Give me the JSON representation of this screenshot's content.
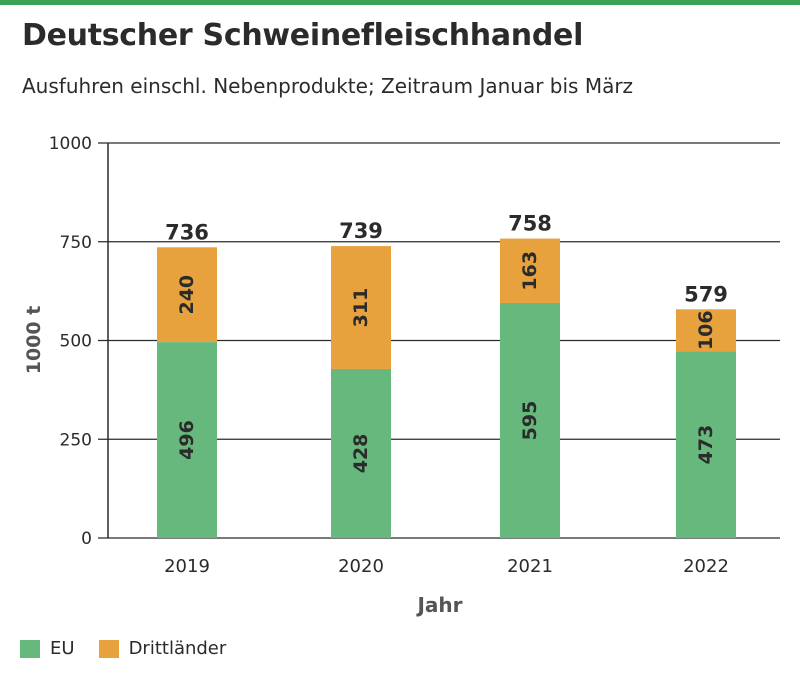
{
  "header": {
    "title": "Deutscher Schweinefleischhandel",
    "subtitle": "Ausfuhren einschl. Nebenprodukte; Zeitraum Januar bis März"
  },
  "colors": {
    "accent_bar": "#3aa35a",
    "eu": "#67b87d",
    "drittlaender": "#e8a23d",
    "text": "#2b2b2b"
  },
  "chart_data": {
    "type": "bar",
    "stacked": true,
    "title": "Deutscher Schweinefleischhandel",
    "subtitle": "Ausfuhren einschl. Nebenprodukte; Zeitraum Januar bis März",
    "xlabel": "Jahr",
    "ylabel": "1000 t",
    "categories": [
      "2019",
      "2020",
      "2021",
      "2022"
    ],
    "series": [
      {
        "name": "EU",
        "values": [
          496,
          428,
          595,
          473
        ]
      },
      {
        "name": "Drittländer",
        "values": [
          240,
          311,
          163,
          106
        ]
      }
    ],
    "totals": [
      736,
      739,
      758,
      579
    ],
    "ylim": [
      0,
      1000
    ],
    "yticks": [
      0,
      250,
      500,
      750,
      1000
    ],
    "grid": true,
    "legend": "bottom-left"
  }
}
